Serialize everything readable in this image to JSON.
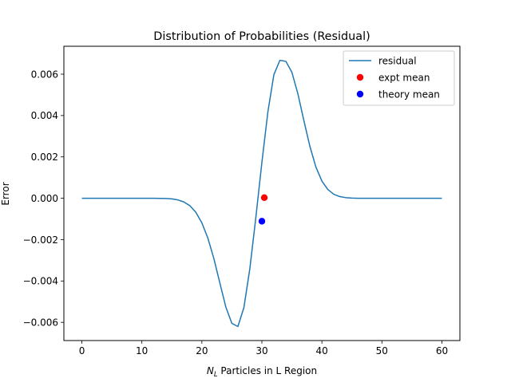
{
  "chart_data": {
    "type": "line",
    "title": "Distribution of Probabilities (Residual)",
    "xlabel_var": "N",
    "xlabel_sub": "L",
    "xlabel_rest": " Particles in L Region",
    "ylabel": "Error",
    "xlim": [
      -3,
      63
    ],
    "ylim": [
      -0.00688,
      0.00735
    ],
    "xticks": [
      0,
      10,
      20,
      30,
      40,
      50,
      60
    ],
    "xtick_labels": [
      "0",
      "10",
      "20",
      "30",
      "40",
      "50",
      "60"
    ],
    "yticks": [
      -0.006,
      -0.004,
      -0.002,
      0.0,
      0.002,
      0.004,
      0.006
    ],
    "ytick_labels": [
      "−0.006",
      "−0.004",
      "−0.002",
      "0.000",
      "0.002",
      "0.004",
      "0.006"
    ],
    "grid": false,
    "legend_position": "top-right",
    "series": [
      {
        "name": "residual",
        "kind": "line",
        "color": "#1f77b4",
        "x": [
          0,
          2,
          4,
          6,
          8,
          10,
          12,
          14,
          15,
          16,
          17,
          18,
          19,
          20,
          21,
          22,
          23,
          24,
          25,
          26,
          27,
          28,
          29,
          30,
          31,
          32,
          33,
          34,
          35,
          36,
          37,
          38,
          39,
          40,
          41,
          42,
          43,
          44,
          45,
          46,
          48,
          50,
          52,
          54,
          56,
          58,
          60
        ],
        "y": [
          0,
          0,
          0,
          0,
          0,
          0,
          0,
          -1e-05,
          -3e-05,
          -8e-05,
          -0.00018,
          -0.00036,
          -0.00068,
          -0.00119,
          -0.00193,
          -0.00292,
          -0.0041,
          -0.00527,
          -0.00605,
          -0.0062,
          -0.00529,
          -0.00339,
          -0.00091,
          0.00173,
          0.00418,
          0.00598,
          0.00667,
          0.00662,
          0.00609,
          0.00505,
          0.00375,
          0.00251,
          0.00151,
          0.00083,
          0.00042,
          0.00019,
          8e-05,
          3e-05,
          1e-05,
          0,
          0,
          0,
          0,
          0,
          0,
          0,
          0
        ]
      },
      {
        "name": "expt mean",
        "kind": "point",
        "color": "#ff0000",
        "x": [
          30.4
        ],
        "y": [
          3e-05
        ]
      },
      {
        "name": "theory mean",
        "kind": "point",
        "color": "#0000ff",
        "x": [
          30.0
        ],
        "y": [
          -0.00111
        ]
      }
    ]
  }
}
